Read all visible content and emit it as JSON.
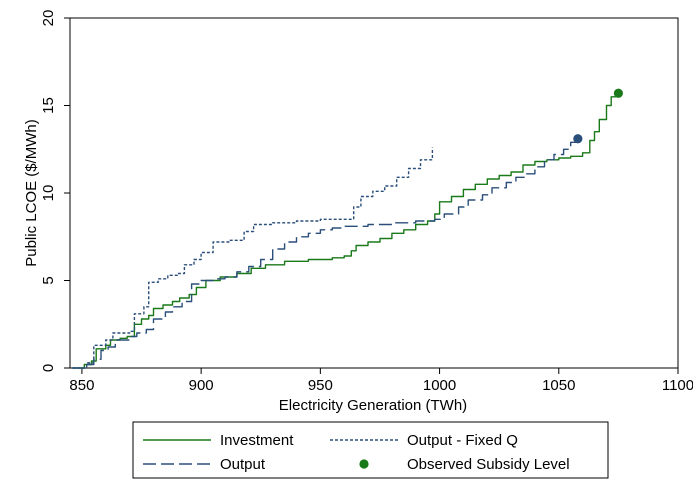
{
  "chart_data": {
    "type": "line",
    "xlabel": "Electricity Generation (TWh)",
    "ylabel": "Public LCOE ($/MWh)",
    "xlim": [
      845,
      1100
    ],
    "ylim": [
      0,
      20
    ],
    "x_ticks": [
      850,
      900,
      950,
      1000,
      1050,
      1100
    ],
    "y_ticks": [
      0,
      5,
      10,
      15,
      20
    ],
    "x_tick_labels": [
      "850",
      "900",
      "950",
      "1000",
      "1050",
      "1100"
    ],
    "y_tick_labels": [
      "0",
      "5",
      "10",
      "15",
      "20"
    ],
    "grid": false,
    "legend_position": "bottom",
    "series": [
      {
        "name": "Investment",
        "color": "#1a7a1a",
        "style": "solid",
        "points": [
          [
            846,
            0.0
          ],
          [
            851,
            0.2
          ],
          [
            854,
            0.4
          ],
          [
            856,
            1.1
          ],
          [
            860,
            1.3
          ],
          [
            862,
            1.6
          ],
          [
            866,
            1.7
          ],
          [
            869,
            1.8
          ],
          [
            872,
            2.5
          ],
          [
            875,
            2.8
          ],
          [
            878,
            3.0
          ],
          [
            880,
            3.4
          ],
          [
            884,
            3.6
          ],
          [
            888,
            3.8
          ],
          [
            891,
            4.0
          ],
          [
            895,
            4.2
          ],
          [
            898,
            4.6
          ],
          [
            902,
            5.0
          ],
          [
            908,
            5.2
          ],
          [
            915,
            5.4
          ],
          [
            921,
            5.7
          ],
          [
            927,
            5.9
          ],
          [
            935,
            6.1
          ],
          [
            945,
            6.2
          ],
          [
            955,
            6.3
          ],
          [
            960,
            6.4
          ],
          [
            963,
            6.7
          ],
          [
            965,
            7.0
          ],
          [
            970,
            7.2
          ],
          [
            975,
            7.4
          ],
          [
            980,
            7.7
          ],
          [
            985,
            7.9
          ],
          [
            990,
            8.2
          ],
          [
            995,
            8.4
          ],
          [
            998,
            8.8
          ],
          [
            1000,
            9.5
          ],
          [
            1005,
            9.8
          ],
          [
            1010,
            10.2
          ],
          [
            1015,
            10.5
          ],
          [
            1020,
            10.8
          ],
          [
            1025,
            11.0
          ],
          [
            1030,
            11.2
          ],
          [
            1035,
            11.6
          ],
          [
            1040,
            11.8
          ],
          [
            1045,
            11.9
          ],
          [
            1050,
            12.0
          ],
          [
            1055,
            12.1
          ],
          [
            1060,
            12.3
          ],
          [
            1063,
            13.0
          ],
          [
            1065,
            13.5
          ],
          [
            1067,
            14.2
          ],
          [
            1070,
            15.0
          ],
          [
            1072,
            15.5
          ],
          [
            1075,
            15.7
          ]
        ]
      },
      {
        "name": "Output",
        "color": "#2a4f7a",
        "style": "longdash",
        "points": [
          [
            846,
            0.0
          ],
          [
            852,
            0.2
          ],
          [
            855,
            0.5
          ],
          [
            858,
            1.0
          ],
          [
            861,
            1.2
          ],
          [
            864,
            1.6
          ],
          [
            870,
            1.8
          ],
          [
            873,
            2.0
          ],
          [
            877,
            2.2
          ],
          [
            880,
            2.8
          ],
          [
            885,
            3.2
          ],
          [
            888,
            3.5
          ],
          [
            892,
            3.8
          ],
          [
            896,
            4.8
          ],
          [
            900,
            5.0
          ],
          [
            905,
            5.1
          ],
          [
            910,
            5.2
          ],
          [
            915,
            5.5
          ],
          [
            920,
            5.8
          ],
          [
            925,
            6.2
          ],
          [
            930,
            6.8
          ],
          [
            935,
            7.2
          ],
          [
            940,
            7.5
          ],
          [
            945,
            7.7
          ],
          [
            950,
            7.9
          ],
          [
            955,
            8.0
          ],
          [
            960,
            8.1
          ],
          [
            970,
            8.2
          ],
          [
            980,
            8.3
          ],
          [
            990,
            8.4
          ],
          [
            998,
            8.5
          ],
          [
            1002,
            8.8
          ],
          [
            1008,
            9.2
          ],
          [
            1012,
            9.6
          ],
          [
            1018,
            9.9
          ],
          [
            1022,
            10.3
          ],
          [
            1028,
            10.6
          ],
          [
            1032,
            10.9
          ],
          [
            1036,
            11.1
          ],
          [
            1040,
            11.5
          ],
          [
            1044,
            11.9
          ],
          [
            1048,
            12.2
          ],
          [
            1052,
            12.5
          ],
          [
            1055,
            12.9
          ],
          [
            1058,
            13.1
          ]
        ]
      },
      {
        "name": "Output - Fixed Q",
        "color": "#2a4f7a",
        "style": "dotted",
        "points": [
          [
            846,
            0.0
          ],
          [
            852,
            0.3
          ],
          [
            855,
            1.3
          ],
          [
            860,
            1.6
          ],
          [
            863,
            2.0
          ],
          [
            870,
            2.1
          ],
          [
            872,
            3.1
          ],
          [
            876,
            3.5
          ],
          [
            878,
            4.9
          ],
          [
            882,
            5.1
          ],
          [
            886,
            5.3
          ],
          [
            890,
            5.4
          ],
          [
            893,
            5.9
          ],
          [
            897,
            6.2
          ],
          [
            900,
            6.6
          ],
          [
            905,
            7.2
          ],
          [
            912,
            7.3
          ],
          [
            918,
            7.8
          ],
          [
            922,
            8.2
          ],
          [
            930,
            8.3
          ],
          [
            940,
            8.4
          ],
          [
            950,
            8.5
          ],
          [
            960,
            8.5
          ],
          [
            964,
            9.2
          ],
          [
            967,
            9.8
          ],
          [
            972,
            10.1
          ],
          [
            977,
            10.4
          ],
          [
            982,
            10.9
          ],
          [
            987,
            11.4
          ],
          [
            992,
            11.9
          ],
          [
            997,
            12.6
          ]
        ]
      }
    ],
    "observed": [
      {
        "name": "Observed Subsidy Level",
        "x": 1075,
        "y": 15.7,
        "color": "#1a7a1a"
      },
      {
        "name": "Observed Subsidy Level",
        "x": 1058,
        "y": 13.1,
        "color": "#2a4f7a"
      }
    ],
    "legend": [
      {
        "label": "Investment",
        "style": "solid",
        "color": "#1a7a1a"
      },
      {
        "label": "Output - Fixed Q",
        "style": "dotted",
        "color": "#2a4f7a"
      },
      {
        "label": "Output",
        "style": "longdash",
        "color": "#2a4f7a"
      },
      {
        "label": "Observed Subsidy Level",
        "style": "marker",
        "color": "#1a7a1a"
      }
    ]
  }
}
